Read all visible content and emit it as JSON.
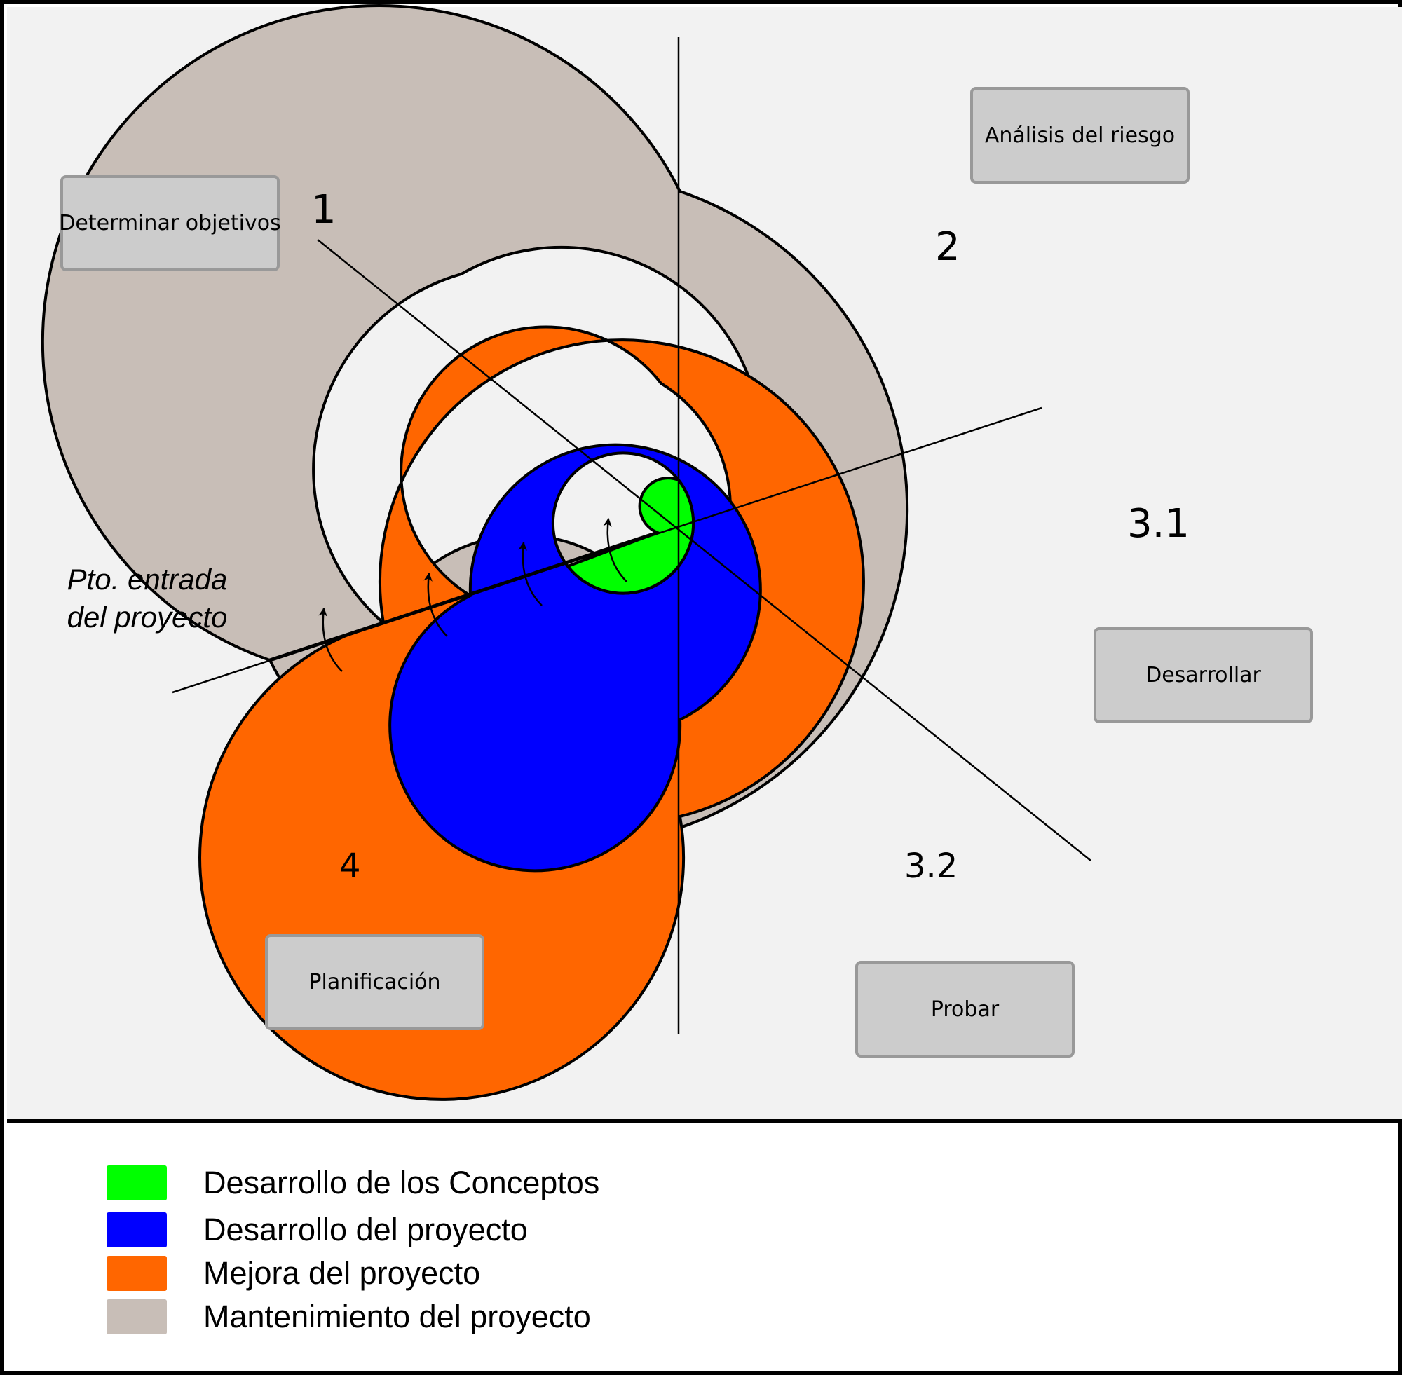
{
  "boxes": {
    "determinar_objetivos": "Determinar objetivos",
    "analisis_riesgo": "Análisis del riesgo",
    "desarrollar": "Desarrollar",
    "probar": "Probar",
    "planificacion": "Planificación"
  },
  "quadrants": {
    "q1": "1",
    "q2": "2",
    "q3_1": "3.1",
    "q3_2": "3.2",
    "q4": "4"
  },
  "entry_point": {
    "line1": "Pto. entrada",
    "line2": "del proyecto"
  },
  "legend": [
    {
      "label": "Desarrollo de los Conceptos",
      "color": "#00ff00"
    },
    {
      "label": "Desarrollo del proyecto",
      "color": "#0000ff"
    },
    {
      "label": "Mejora del proyecto",
      "color": "#ff6600"
    },
    {
      "label": "Mantenimiento del proyecto",
      "color": "#c8beb7"
    }
  ],
  "colors": {
    "background": "#f2f2f2",
    "box_fill": "#cccccc",
    "box_border": "#999999",
    "green": "#00ff00",
    "blue": "#0000ff",
    "orange": "#ff6600",
    "gray": "#c8beb7"
  }
}
